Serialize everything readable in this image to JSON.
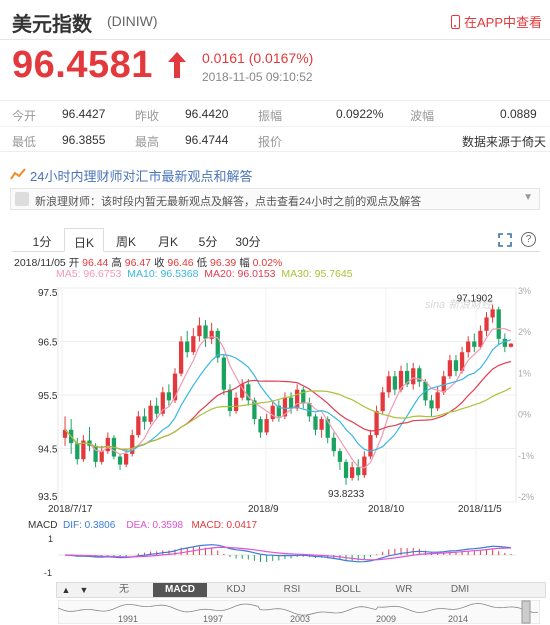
{
  "header": {
    "title": "美元指数",
    "code": "(DINIW)",
    "app_link": "在APP中查看"
  },
  "quote": {
    "price": "96.4581",
    "change": "0.0161 (0.0167%)",
    "timestamp": "2018-11-05 09:10:52"
  },
  "stats": {
    "row1": [
      {
        "label": "今开",
        "value": "96.4427"
      },
      {
        "label": "昨收",
        "value": "96.4420"
      },
      {
        "label": "振幅",
        "value": "0.0922%"
      },
      {
        "label": "波幅",
        "value": "0.0889"
      }
    ],
    "row2": [
      {
        "label": "最低",
        "value": "96.3855"
      },
      {
        "label": "最高",
        "value": "96.4744"
      },
      {
        "label": "报价",
        "value": "数据来源于倚天"
      }
    ]
  },
  "news": {
    "headline": "24小时内理财师对汇市最新观点和解答",
    "body": "新浪理财师：该时段内暂无最新观点及解答，点击查看24小时之前的观点及解答"
  },
  "tabs": [
    "1分",
    "日K",
    "周K",
    "月K",
    "5分",
    "30分"
  ],
  "active_tab": "日K",
  "bar_info": {
    "date": "2018/11/05",
    "open_label": "开",
    "open": "96.44",
    "high_label": "高",
    "high": "96.47",
    "close_label": "收",
    "close": "96.46",
    "low_label": "低",
    "low": "96.39",
    "range_label": "幅",
    "range": "0.02%"
  },
  "ma": {
    "ma5": "MA5: 96.6753",
    "ma10": "MA10: 96.5368",
    "ma20": "MA20: 96.0153",
    "ma30": "MA30: 95.7645"
  },
  "macd": {
    "label": "MACD",
    "dif": "DIF: 0.3806",
    "dea": "DEA: 0.3598",
    "macd": "MACD: 0.0417"
  },
  "indicator_tabs": [
    "无",
    "MACD",
    "KDJ",
    "RSI",
    "BOLL",
    "WR",
    "DMI"
  ],
  "active_indicator": "MACD",
  "overview_years": [
    "1991",
    "1997",
    "2003",
    "2009",
    "2014"
  ],
  "watermark": "sina 新浪财经",
  "colors": {
    "up": "#e4393c",
    "down": "#1aa260",
    "ma5": "#f29ab2",
    "ma10": "#39b7e0",
    "ma20": "#e23b52",
    "ma30": "#a8c23a",
    "dif": "#3a7bd5",
    "dea": "#e052d6"
  },
  "chart_data": {
    "type": "candlestick",
    "y_ticks": [
      "97.5",
      "96.5",
      "95.5",
      "94.5",
      "93.5"
    ],
    "pct_ticks": [
      "3%",
      "2%",
      "1%",
      "0%",
      "-1%",
      "-2%"
    ],
    "x_ticks": [
      "2018/7/17",
      "2018/9",
      "2018/10",
      "2018/11/5"
    ],
    "ylim": [
      93.5,
      97.5
    ],
    "annotations": [
      {
        "label": "97.1902"
      },
      {
        "label": "93.8233"
      }
    ],
    "candles": [
      {
        "o": 94.7,
        "c": 94.85,
        "h": 95.1,
        "l": 94.55
      },
      {
        "o": 94.85,
        "c": 94.6,
        "h": 95.05,
        "l": 94.4
      },
      {
        "o": 94.6,
        "c": 94.3,
        "h": 94.7,
        "l": 94.2
      },
      {
        "o": 94.3,
        "c": 94.65,
        "h": 94.75,
        "l": 94.25
      },
      {
        "o": 94.65,
        "c": 94.55,
        "h": 94.9,
        "l": 94.45
      },
      {
        "o": 94.55,
        "c": 94.25,
        "h": 94.6,
        "l": 94.15
      },
      {
        "o": 94.25,
        "c": 94.45,
        "h": 94.55,
        "l": 94.2
      },
      {
        "o": 94.45,
        "c": 94.7,
        "h": 94.8,
        "l": 94.4
      },
      {
        "o": 94.7,
        "c": 94.35,
        "h": 94.75,
        "l": 94.3
      },
      {
        "o": 94.35,
        "c": 94.2,
        "h": 94.4,
        "l": 94.1
      },
      {
        "o": 94.2,
        "c": 94.4,
        "h": 94.5,
        "l": 94.15
      },
      {
        "o": 94.4,
        "c": 94.75,
        "h": 94.85,
        "l": 94.35
      },
      {
        "o": 94.75,
        "c": 95.1,
        "h": 95.2,
        "l": 94.7
      },
      {
        "o": 95.1,
        "c": 95.0,
        "h": 95.25,
        "l": 94.85
      },
      {
        "o": 95.0,
        "c": 95.3,
        "h": 95.4,
        "l": 94.95
      },
      {
        "o": 95.3,
        "c": 95.15,
        "h": 95.45,
        "l": 95.05
      },
      {
        "o": 95.15,
        "c": 95.55,
        "h": 95.65,
        "l": 95.1
      },
      {
        "o": 95.55,
        "c": 95.4,
        "h": 95.7,
        "l": 95.3
      },
      {
        "o": 95.4,
        "c": 95.9,
        "h": 96.0,
        "l": 95.35
      },
      {
        "o": 95.9,
        "c": 96.5,
        "h": 96.6,
        "l": 95.85
      },
      {
        "o": 96.5,
        "c": 96.3,
        "h": 96.7,
        "l": 96.2
      },
      {
        "o": 96.3,
        "c": 96.6,
        "h": 96.75,
        "l": 96.25
      },
      {
        "o": 96.6,
        "c": 96.8,
        "h": 96.95,
        "l": 96.5
      },
      {
        "o": 96.8,
        "c": 96.55,
        "h": 96.9,
        "l": 96.4
      },
      {
        "o": 96.55,
        "c": 96.7,
        "h": 96.85,
        "l": 96.45
      },
      {
        "o": 96.7,
        "c": 96.2,
        "h": 96.75,
        "l": 96.1
      },
      {
        "o": 96.2,
        "c": 95.6,
        "h": 96.25,
        "l": 95.5
      },
      {
        "o": 95.6,
        "c": 95.2,
        "h": 95.7,
        "l": 95.1
      },
      {
        "o": 95.2,
        "c": 95.45,
        "h": 95.55,
        "l": 95.15
      },
      {
        "o": 95.45,
        "c": 95.7,
        "h": 95.8,
        "l": 95.4
      },
      {
        "o": 95.7,
        "c": 95.4,
        "h": 95.8,
        "l": 95.3
      },
      {
        "o": 95.4,
        "c": 95.05,
        "h": 95.45,
        "l": 94.95
      },
      {
        "o": 95.05,
        "c": 94.8,
        "h": 95.1,
        "l": 94.7
      },
      {
        "o": 94.8,
        "c": 95.05,
        "h": 95.15,
        "l": 94.75
      },
      {
        "o": 95.05,
        "c": 95.3,
        "h": 95.4,
        "l": 95.0
      },
      {
        "o": 95.3,
        "c": 95.1,
        "h": 95.4,
        "l": 95.0
      },
      {
        "o": 95.1,
        "c": 95.45,
        "h": 95.55,
        "l": 95.05
      },
      {
        "o": 95.45,
        "c": 95.25,
        "h": 95.55,
        "l": 95.15
      },
      {
        "o": 95.25,
        "c": 95.6,
        "h": 95.7,
        "l": 95.2
      },
      {
        "o": 95.6,
        "c": 95.35,
        "h": 95.65,
        "l": 95.25
      },
      {
        "o": 95.35,
        "c": 95.1,
        "h": 95.45,
        "l": 95.0
      },
      {
        "o": 95.1,
        "c": 94.85,
        "h": 95.15,
        "l": 94.75
      },
      {
        "o": 94.85,
        "c": 95.05,
        "h": 95.1,
        "l": 94.7
      },
      {
        "o": 95.05,
        "c": 94.7,
        "h": 95.1,
        "l": 94.6
      },
      {
        "o": 94.7,
        "c": 94.45,
        "h": 94.8,
        "l": 94.35
      },
      {
        "o": 94.45,
        "c": 94.25,
        "h": 94.5,
        "l": 94.1
      },
      {
        "o": 94.25,
        "c": 93.95,
        "h": 94.3,
        "l": 93.82
      },
      {
        "o": 93.95,
        "c": 94.15,
        "h": 94.25,
        "l": 93.9
      },
      {
        "o": 94.15,
        "c": 94.0,
        "h": 94.3,
        "l": 93.9
      },
      {
        "o": 94.0,
        "c": 94.35,
        "h": 94.45,
        "l": 93.95
      },
      {
        "o": 94.35,
        "c": 94.75,
        "h": 94.85,
        "l": 94.3
      },
      {
        "o": 94.75,
        "c": 95.2,
        "h": 95.3,
        "l": 94.7
      },
      {
        "o": 95.2,
        "c": 95.55,
        "h": 95.65,
        "l": 95.15
      },
      {
        "o": 95.55,
        "c": 95.85,
        "h": 95.95,
        "l": 95.45
      },
      {
        "o": 95.85,
        "c": 95.6,
        "h": 95.95,
        "l": 95.5
      },
      {
        "o": 95.6,
        "c": 95.95,
        "h": 96.05,
        "l": 95.55
      },
      {
        "o": 95.95,
        "c": 95.7,
        "h": 96.1,
        "l": 95.65
      },
      {
        "o": 95.7,
        "c": 96.0,
        "h": 96.1,
        "l": 95.6
      },
      {
        "o": 96.0,
        "c": 95.75,
        "h": 96.05,
        "l": 95.65
      },
      {
        "o": 95.75,
        "c": 95.4,
        "h": 95.8,
        "l": 95.3
      },
      {
        "o": 95.4,
        "c": 95.25,
        "h": 95.5,
        "l": 95.1
      },
      {
        "o": 95.25,
        "c": 95.55,
        "h": 95.65,
        "l": 95.2
      },
      {
        "o": 95.55,
        "c": 95.85,
        "h": 95.95,
        "l": 95.5
      },
      {
        "o": 95.85,
        "c": 96.15,
        "h": 96.25,
        "l": 95.8
      },
      {
        "o": 96.15,
        "c": 95.95,
        "h": 96.25,
        "l": 95.85
      },
      {
        "o": 95.95,
        "c": 96.3,
        "h": 96.4,
        "l": 95.9
      },
      {
        "o": 96.3,
        "c": 96.5,
        "h": 96.6,
        "l": 96.2
      },
      {
        "o": 96.5,
        "c": 96.4,
        "h": 96.65,
        "l": 96.3
      },
      {
        "o": 96.4,
        "c": 96.7,
        "h": 96.8,
        "l": 96.35
      },
      {
        "o": 96.7,
        "c": 96.95,
        "h": 97.05,
        "l": 96.6
      },
      {
        "o": 96.95,
        "c": 97.1,
        "h": 97.19,
        "l": 96.85
      },
      {
        "o": 97.1,
        "c": 96.55,
        "h": 97.15,
        "l": 96.45
      },
      {
        "o": 96.55,
        "c": 96.4,
        "h": 96.65,
        "l": 96.3
      },
      {
        "o": 96.4,
        "c": 96.46,
        "h": 96.47,
        "l": 96.39
      }
    ]
  }
}
